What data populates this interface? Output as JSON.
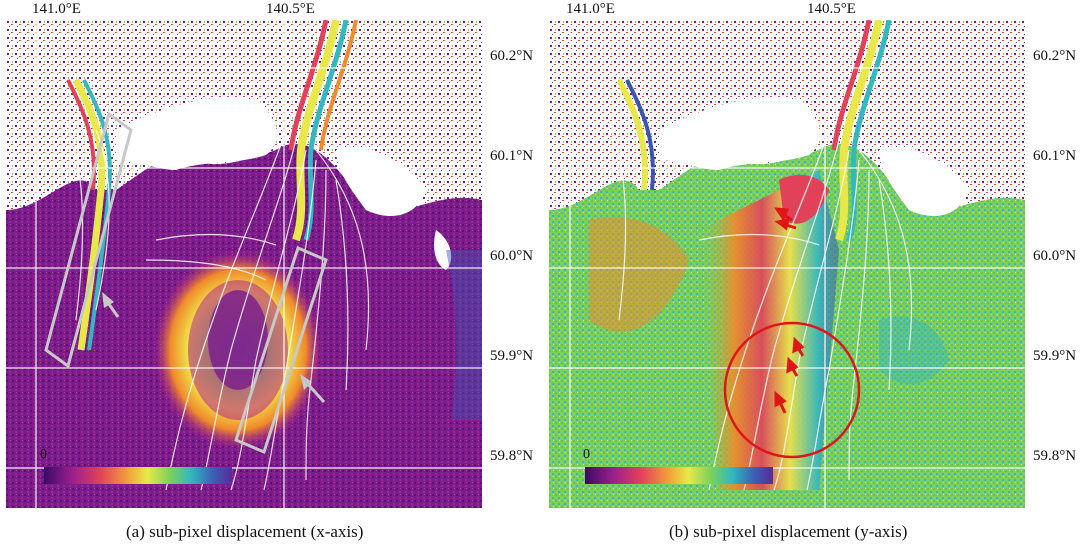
{
  "panels": [
    {
      "id": "a",
      "caption": "(a) sub-pixel displacement (x-axis)",
      "lon_ticks": [
        "141.0°E",
        "140.5°E"
      ],
      "lat_ticks": [
        "60.2°N",
        "60.1°N",
        "60.0°N",
        "59.9°N",
        "59.8°N"
      ],
      "colorbar_min_label": "0"
    },
    {
      "id": "b",
      "caption": "(b) sub-pixel displacement (y-axis)",
      "lon_ticks": [
        "141.0°E",
        "140.5°E"
      ],
      "lat_ticks": [
        "60.2°N",
        "60.1°N",
        "60.0°N",
        "59.9°N",
        "59.8°N"
      ],
      "colorbar_min_label": "0"
    }
  ],
  "colors": {
    "background_purple": "#7a1c8c",
    "purple_dark": "#5b1079",
    "magenta": "#b8248a",
    "orange": "#f08a2a",
    "yellow": "#f2e24a",
    "green": "#7ccf5a",
    "cyan": "#36b6c2",
    "blue": "#3a55b0",
    "grid_line": "#ffffff",
    "annotation_gray": "#c8c8c8",
    "annotation_red": "#e01616"
  },
  "colorbar_stops": [
    "#3b0a66",
    "#9b1f8e",
    "#e2415a",
    "#f2a33a",
    "#e8e84a",
    "#7bd15a",
    "#33b8c0",
    "#3b5fb4",
    "#5a2a9a"
  ],
  "annotations": {
    "panel_a": [
      "gray-box-left",
      "gray-arrow-left",
      "gray-box-right",
      "gray-arrow-right"
    ],
    "panel_b": [
      "red-circle",
      "red-arrows-upper",
      "red-arrows-inside-circle"
    ]
  }
}
